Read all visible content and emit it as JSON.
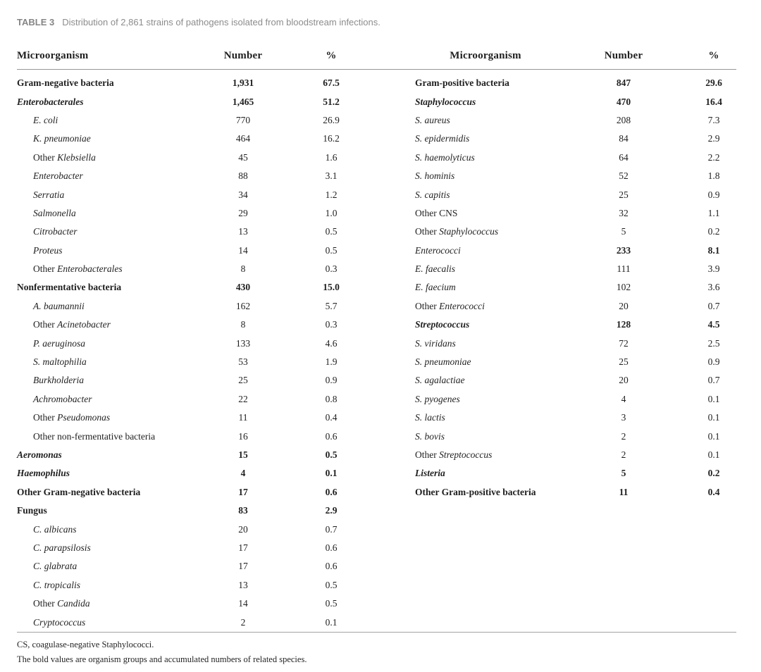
{
  "caption": {
    "label": "TABLE 3",
    "text": "Distribution of 2,861 strains of pathogens isolated from bloodstream infections."
  },
  "left_table": {
    "headers": {
      "organism": "Microorganism",
      "number": "Number",
      "percent": "%"
    },
    "rows": [
      {
        "name": [
          {
            "t": "Gram-negative bacteria",
            "i": false
          }
        ],
        "bold": true,
        "num_bold": true,
        "indent": false,
        "number": "1,931",
        "percent": "67.5"
      },
      {
        "name": [
          {
            "t": "Enterobacterales",
            "i": true
          }
        ],
        "bold": true,
        "num_bold": true,
        "indent": false,
        "number": "1,465",
        "percent": "51.2"
      },
      {
        "name": [
          {
            "t": "E. coli",
            "i": true
          }
        ],
        "bold": false,
        "num_bold": false,
        "indent": true,
        "number": "770",
        "percent": "26.9"
      },
      {
        "name": [
          {
            "t": "K. pneumoniae",
            "i": true
          }
        ],
        "bold": false,
        "num_bold": false,
        "indent": true,
        "number": "464",
        "percent": "16.2"
      },
      {
        "name": [
          {
            "t": "Other ",
            "i": false
          },
          {
            "t": "Klebsiella",
            "i": true
          }
        ],
        "bold": false,
        "num_bold": false,
        "indent": true,
        "number": "45",
        "percent": "1.6"
      },
      {
        "name": [
          {
            "t": "Enterobacter",
            "i": true
          }
        ],
        "bold": false,
        "num_bold": false,
        "indent": true,
        "number": "88",
        "percent": "3.1"
      },
      {
        "name": [
          {
            "t": "Serratia",
            "i": true
          }
        ],
        "bold": false,
        "num_bold": false,
        "indent": true,
        "number": "34",
        "percent": "1.2"
      },
      {
        "name": [
          {
            "t": "Salmonella",
            "i": true
          }
        ],
        "bold": false,
        "num_bold": false,
        "indent": true,
        "number": "29",
        "percent": "1.0"
      },
      {
        "name": [
          {
            "t": "Citrobacter",
            "i": true
          }
        ],
        "bold": false,
        "num_bold": false,
        "indent": true,
        "number": "13",
        "percent": "0.5"
      },
      {
        "name": [
          {
            "t": "Proteus",
            "i": true
          }
        ],
        "bold": false,
        "num_bold": false,
        "indent": true,
        "number": "14",
        "percent": "0.5"
      },
      {
        "name": [
          {
            "t": "Other ",
            "i": false
          },
          {
            "t": "Enterobacterales",
            "i": true
          }
        ],
        "bold": false,
        "num_bold": false,
        "indent": true,
        "number": "8",
        "percent": "0.3"
      },
      {
        "name": [
          {
            "t": "Nonfermentative bacteria",
            "i": false
          }
        ],
        "bold": true,
        "num_bold": true,
        "indent": false,
        "number": "430",
        "percent": "15.0"
      },
      {
        "name": [
          {
            "t": "A. baumannii",
            "i": true
          }
        ],
        "bold": false,
        "num_bold": false,
        "indent": true,
        "number": "162",
        "percent": "5.7"
      },
      {
        "name": [
          {
            "t": "Other ",
            "i": false
          },
          {
            "t": "Acinetobacter",
            "i": true
          }
        ],
        "bold": false,
        "num_bold": false,
        "indent": true,
        "number": "8",
        "percent": "0.3"
      },
      {
        "name": [
          {
            "t": "P. aeruginosa",
            "i": true
          }
        ],
        "bold": false,
        "num_bold": false,
        "indent": true,
        "number": "133",
        "percent": "4.6"
      },
      {
        "name": [
          {
            "t": "S. maltophilia",
            "i": true
          }
        ],
        "bold": false,
        "num_bold": false,
        "indent": true,
        "number": "53",
        "percent": "1.9"
      },
      {
        "name": [
          {
            "t": "Burkholderia",
            "i": true
          }
        ],
        "bold": false,
        "num_bold": false,
        "indent": true,
        "number": "25",
        "percent": "0.9"
      },
      {
        "name": [
          {
            "t": "Achromobacter",
            "i": true
          }
        ],
        "bold": false,
        "num_bold": false,
        "indent": true,
        "number": "22",
        "percent": "0.8"
      },
      {
        "name": [
          {
            "t": "Other ",
            "i": false
          },
          {
            "t": "Pseudomonas",
            "i": true
          }
        ],
        "bold": false,
        "num_bold": false,
        "indent": true,
        "number": "11",
        "percent": "0.4"
      },
      {
        "name": [
          {
            "t": "Other non-fermentative bacteria",
            "i": false
          }
        ],
        "bold": false,
        "num_bold": false,
        "indent": true,
        "number": "16",
        "percent": "0.6"
      },
      {
        "name": [
          {
            "t": "Aeromonas",
            "i": true
          }
        ],
        "bold": true,
        "num_bold": true,
        "indent": false,
        "number": "15",
        "percent": "0.5"
      },
      {
        "name": [
          {
            "t": "Haemophilus",
            "i": true
          }
        ],
        "bold": true,
        "num_bold": true,
        "indent": false,
        "number": "4",
        "percent": "0.1"
      },
      {
        "name": [
          {
            "t": "Other Gram-negative bacteria",
            "i": false
          }
        ],
        "bold": true,
        "num_bold": true,
        "indent": false,
        "number": "17",
        "percent": "0.6"
      },
      {
        "name": [
          {
            "t": "Fungus",
            "i": false
          }
        ],
        "bold": true,
        "num_bold": true,
        "indent": false,
        "number": "83",
        "percent": "2.9"
      },
      {
        "name": [
          {
            "t": "C. albicans",
            "i": true
          }
        ],
        "bold": false,
        "num_bold": false,
        "indent": true,
        "number": "20",
        "percent": "0.7"
      },
      {
        "name": [
          {
            "t": "C. parapsilosis",
            "i": true
          }
        ],
        "bold": false,
        "num_bold": false,
        "indent": true,
        "number": "17",
        "percent": "0.6"
      },
      {
        "name": [
          {
            "t": "C. glabrata",
            "i": true
          }
        ],
        "bold": false,
        "num_bold": false,
        "indent": true,
        "number": "17",
        "percent": "0.6"
      },
      {
        "name": [
          {
            "t": "C. tropicalis",
            "i": true
          }
        ],
        "bold": false,
        "num_bold": false,
        "indent": true,
        "number": "13",
        "percent": "0.5"
      },
      {
        "name": [
          {
            "t": "Other ",
            "i": false
          },
          {
            "t": "Candida",
            "i": true
          }
        ],
        "bold": false,
        "num_bold": false,
        "indent": true,
        "number": "14",
        "percent": "0.5"
      },
      {
        "name": [
          {
            "t": "Cryptococcus",
            "i": true
          }
        ],
        "bold": false,
        "num_bold": false,
        "indent": true,
        "number": "2",
        "percent": "0.1"
      }
    ]
  },
  "right_table": {
    "headers": {
      "organism": "Microorganism",
      "number": "Number",
      "percent": "%"
    },
    "rows": [
      {
        "name": [
          {
            "t": "Gram-positive bacteria",
            "i": false
          }
        ],
        "bold": true,
        "num_bold": true,
        "indent": false,
        "number": "847",
        "percent": "29.6"
      },
      {
        "name": [
          {
            "t": "Staphylococcus",
            "i": true
          }
        ],
        "bold": true,
        "num_bold": true,
        "indent": false,
        "number": "470",
        "percent": "16.4"
      },
      {
        "name": [
          {
            "t": "S. aureus",
            "i": true
          }
        ],
        "bold": false,
        "num_bold": false,
        "indent": false,
        "number": "208",
        "percent": "7.3"
      },
      {
        "name": [
          {
            "t": "S. epidermidis",
            "i": true
          }
        ],
        "bold": false,
        "num_bold": false,
        "indent": false,
        "number": "84",
        "percent": "2.9"
      },
      {
        "name": [
          {
            "t": "S. haemolyticus",
            "i": true
          }
        ],
        "bold": false,
        "num_bold": false,
        "indent": false,
        "number": "64",
        "percent": "2.2"
      },
      {
        "name": [
          {
            "t": "S. hominis",
            "i": true
          }
        ],
        "bold": false,
        "num_bold": false,
        "indent": false,
        "number": "52",
        "percent": "1.8"
      },
      {
        "name": [
          {
            "t": "S. capitis",
            "i": true
          }
        ],
        "bold": false,
        "num_bold": false,
        "indent": false,
        "number": "25",
        "percent": "0.9"
      },
      {
        "name": [
          {
            "t": "Other CNS",
            "i": false
          }
        ],
        "bold": false,
        "num_bold": false,
        "indent": false,
        "number": "32",
        "percent": "1.1"
      },
      {
        "name": [
          {
            "t": "Other ",
            "i": false
          },
          {
            "t": "Staphylococcus",
            "i": true
          }
        ],
        "bold": false,
        "num_bold": false,
        "indent": false,
        "number": "5",
        "percent": "0.2"
      },
      {
        "name": [
          {
            "t": "Enterococci",
            "i": true
          }
        ],
        "bold": false,
        "num_bold": true,
        "indent": false,
        "number": "233",
        "percent": "8.1"
      },
      {
        "name": [
          {
            "t": "E. faecalis",
            "i": true
          }
        ],
        "bold": false,
        "num_bold": false,
        "indent": false,
        "number": "111",
        "percent": "3.9"
      },
      {
        "name": [
          {
            "t": "E. faecium",
            "i": true
          }
        ],
        "bold": false,
        "num_bold": false,
        "indent": false,
        "number": "102",
        "percent": "3.6"
      },
      {
        "name": [
          {
            "t": "Other ",
            "i": false
          },
          {
            "t": "Enterococci",
            "i": true
          }
        ],
        "bold": false,
        "num_bold": false,
        "indent": false,
        "number": "20",
        "percent": "0.7"
      },
      {
        "name": [
          {
            "t": "Streptococcus",
            "i": true
          }
        ],
        "bold": true,
        "num_bold": true,
        "indent": false,
        "number": "128",
        "percent": "4.5"
      },
      {
        "name": [
          {
            "t": "S. viridans",
            "i": true
          }
        ],
        "bold": false,
        "num_bold": false,
        "indent": false,
        "number": "72",
        "percent": "2.5"
      },
      {
        "name": [
          {
            "t": "S. pneumoniae",
            "i": true
          }
        ],
        "bold": false,
        "num_bold": false,
        "indent": false,
        "number": "25",
        "percent": "0.9"
      },
      {
        "name": [
          {
            "t": "S. agalactiae",
            "i": true
          }
        ],
        "bold": false,
        "num_bold": false,
        "indent": false,
        "number": "20",
        "percent": "0.7"
      },
      {
        "name": [
          {
            "t": "S. pyogenes",
            "i": true
          }
        ],
        "bold": false,
        "num_bold": false,
        "indent": false,
        "number": "4",
        "percent": "0.1"
      },
      {
        "name": [
          {
            "t": "S. lactis",
            "i": true
          }
        ],
        "bold": false,
        "num_bold": false,
        "indent": false,
        "number": "3",
        "percent": "0.1"
      },
      {
        "name": [
          {
            "t": "S. bovis",
            "i": true
          }
        ],
        "bold": false,
        "num_bold": false,
        "indent": false,
        "number": "2",
        "percent": "0.1"
      },
      {
        "name": [
          {
            "t": "Other ",
            "i": false
          },
          {
            "t": "Streptococcus",
            "i": true
          }
        ],
        "bold": false,
        "num_bold": false,
        "indent": false,
        "number": "2",
        "percent": "0.1"
      },
      {
        "name": [
          {
            "t": "Listeria",
            "i": true
          }
        ],
        "bold": true,
        "num_bold": true,
        "indent": false,
        "number": "5",
        "percent": "0.2"
      },
      {
        "name": [
          {
            "t": "Other Gram-positive bacteria",
            "i": false
          }
        ],
        "bold": true,
        "num_bold": true,
        "indent": false,
        "number": "11",
        "percent": "0.4"
      }
    ]
  },
  "footnotes": [
    "CS, coagulase-negative Staphylococci.",
    "The bold values are organism groups and accumulated numbers of related species."
  ],
  "colors": {
    "caption_gray": "#8c8c8c",
    "rule_gray": "#979797",
    "text": "#1f1f1f"
  }
}
